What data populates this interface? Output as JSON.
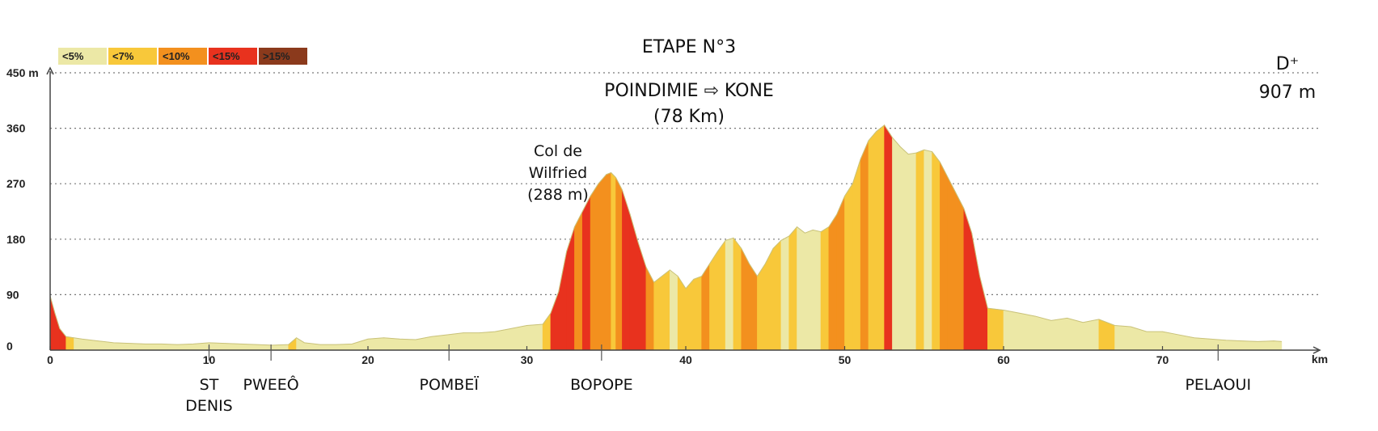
{
  "chart_data": {
    "type": "area",
    "title": "ETAPE N°3",
    "subtitle_line1": "POINDIMIE ⇨ KONE",
    "subtitle_line2": "(78 Km)",
    "elevation_gain_label": "D⁺",
    "elevation_gain_value": "907 m",
    "ylabel": "m",
    "xlabel": "km",
    "xlim": [
      0,
      80
    ],
    "ylim": [
      0,
      450
    ],
    "x_ticks": [
      0,
      10,
      20,
      30,
      40,
      50,
      60,
      70
    ],
    "y_ticks": [
      "0",
      "90",
      "180",
      "270",
      "360",
      "450 m"
    ],
    "grid": true,
    "legend": {
      "placement": "top-left",
      "entries": [
        {
          "label": "<5%",
          "color": "#ece8a6"
        },
        {
          "label": "<7%",
          "color": "#f8c83a"
        },
        {
          "label": "<10%",
          "color": "#f3901e"
        },
        {
          "label": "<15%",
          "color": "#e8321e"
        },
        {
          "label": ">15%",
          "color": "#8b3a1c"
        }
      ]
    },
    "annotation": {
      "lines": [
        "Col de",
        "Wilfried",
        "(288 m)"
      ],
      "x": 35.3,
      "y": 288
    },
    "places": [
      {
        "lines": [
          "ST",
          "DENIS"
        ],
        "x": 10
      },
      {
        "lines": [
          "PWEEÔ"
        ],
        "x": 13.9
      },
      {
        "lines": [
          "POMBEÏ"
        ],
        "x": 25.1
      },
      {
        "lines": [
          "BOPOPE"
        ],
        "x": 34.7
      },
      {
        "lines": [
          "PELAOUI"
        ],
        "x": 73.5
      }
    ],
    "profile": {
      "x": [
        0,
        0.3,
        0.6,
        1,
        1.5,
        2,
        3,
        4,
        5,
        6,
        7,
        8,
        9,
        10,
        11,
        12,
        13,
        14,
        15,
        15.5,
        16,
        17,
        18,
        19,
        20,
        21,
        22,
        23,
        24,
        25,
        26,
        27,
        28,
        29,
        30,
        31,
        31.5,
        32,
        32.5,
        33,
        33.5,
        34,
        34.5,
        35,
        35.3,
        35.6,
        36,
        36.5,
        37,
        37.5,
        38,
        38.5,
        39,
        39.5,
        40,
        40.5,
        41,
        41.5,
        42,
        42.5,
        43,
        43.5,
        44,
        44.5,
        45,
        45.5,
        46,
        46.5,
        47,
        47.5,
        48,
        48.5,
        49,
        49.5,
        50,
        50.5,
        51,
        51.5,
        52,
        52.5,
        53,
        53.5,
        54,
        54.5,
        55,
        55.5,
        56,
        56.5,
        57,
        57.5,
        58,
        58.5,
        59,
        60,
        61,
        62,
        63,
        64,
        65,
        66,
        67,
        68,
        69,
        70,
        71,
        72,
        73,
        74,
        75,
        76,
        77,
        77.5
      ],
      "y": [
        88,
        60,
        35,
        22,
        20,
        18,
        15,
        12,
        11,
        10,
        10,
        9,
        10,
        12,
        11,
        10,
        9,
        8,
        9,
        20,
        12,
        9,
        9,
        10,
        18,
        20,
        18,
        17,
        22,
        25,
        28,
        28,
        30,
        35,
        40,
        42,
        60,
        95,
        160,
        200,
        225,
        250,
        270,
        285,
        288,
        280,
        260,
        220,
        175,
        135,
        110,
        120,
        130,
        120,
        100,
        115,
        120,
        140,
        160,
        178,
        182,
        165,
        140,
        120,
        140,
        165,
        178,
        185,
        200,
        190,
        195,
        192,
        200,
        220,
        250,
        270,
        310,
        340,
        355,
        365,
        345,
        330,
        318,
        320,
        325,
        322,
        305,
        280,
        255,
        230,
        190,
        120,
        68,
        65,
        60,
        55,
        48,
        52,
        45,
        50,
        40,
        38,
        30,
        30,
        25,
        20,
        18,
        16,
        15,
        14,
        15,
        14
      ],
      "slope_classes": [
        3,
        3,
        3,
        1,
        0,
        0,
        0,
        0,
        0,
        0,
        0,
        0,
        0,
        0,
        0,
        0,
        0,
        0,
        1,
        0,
        0,
        0,
        0,
        0,
        0,
        0,
        0,
        0,
        0,
        0,
        0,
        0,
        0,
        0,
        0,
        1,
        3,
        3,
        3,
        2,
        3,
        2,
        2,
        2,
        1,
        2,
        3,
        3,
        3,
        2,
        1,
        1,
        0,
        1,
        1,
        1,
        2,
        1,
        1,
        0,
        1,
        2,
        2,
        1,
        1,
        1,
        0,
        1,
        0,
        0,
        0,
        1,
        2,
        2,
        1,
        1,
        2,
        1,
        1,
        3,
        0,
        0,
        0,
        1,
        0,
        1,
        2,
        2,
        2,
        3,
        3,
        3,
        1,
        0,
        0,
        0,
        0,
        0,
        0,
        1,
        0,
        0,
        0,
        0,
        0,
        0,
        0,
        0,
        0,
        0,
        0
      ]
    }
  }
}
